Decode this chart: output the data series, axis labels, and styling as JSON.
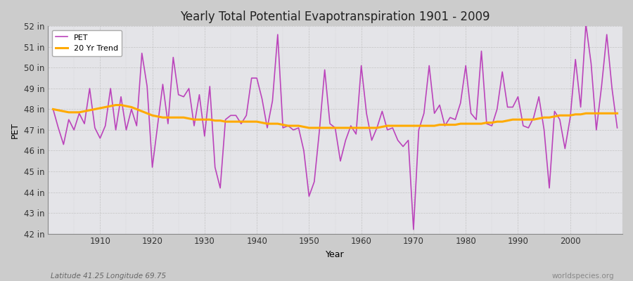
{
  "title": "Yearly Total Potential Evapotranspiration 1901 - 2009",
  "xlabel": "Year",
  "ylabel": "PET",
  "subtitle_left": "Latitude 41.25 Longitude 69.75",
  "subtitle_right": "worldspecies.org",
  "ylim": [
    42,
    52
  ],
  "yticks": [
    42,
    43,
    44,
    45,
    46,
    47,
    48,
    49,
    50,
    51,
    52
  ],
  "ytick_labels": [
    "42 in",
    "43 in",
    "44 in",
    "45 in",
    "46 in",
    "47 in",
    "48 in",
    "49 in",
    "50 in",
    "51 in",
    "52 in"
  ],
  "pet_color": "#bb44bb",
  "trend_color": "#ffaa00",
  "fig_bg_color": "#cccccc",
  "plot_bg_color": "#e4e4e8",
  "years": [
    1901,
    1902,
    1903,
    1904,
    1905,
    1906,
    1907,
    1908,
    1909,
    1910,
    1911,
    1912,
    1913,
    1914,
    1915,
    1916,
    1917,
    1918,
    1919,
    1920,
    1921,
    1922,
    1923,
    1924,
    1925,
    1926,
    1927,
    1928,
    1929,
    1930,
    1931,
    1932,
    1933,
    1934,
    1935,
    1936,
    1937,
    1938,
    1939,
    1940,
    1941,
    1942,
    1943,
    1944,
    1945,
    1946,
    1947,
    1948,
    1949,
    1950,
    1951,
    1952,
    1953,
    1954,
    1955,
    1956,
    1957,
    1958,
    1959,
    1960,
    1961,
    1962,
    1963,
    1964,
    1965,
    1966,
    1967,
    1968,
    1969,
    1970,
    1971,
    1972,
    1973,
    1974,
    1975,
    1976,
    1977,
    1978,
    1979,
    1980,
    1981,
    1982,
    1983,
    1984,
    1985,
    1986,
    1987,
    1988,
    1989,
    1990,
    1991,
    1992,
    1993,
    1994,
    1995,
    1996,
    1997,
    1998,
    1999,
    2000,
    2001,
    2002,
    2003,
    2004,
    2005,
    2006,
    2007,
    2008,
    2009
  ],
  "pet_values": [
    48.0,
    47.1,
    46.3,
    47.5,
    47.0,
    47.8,
    47.3,
    49.0,
    47.1,
    46.6,
    47.2,
    49.0,
    47.0,
    48.6,
    47.0,
    48.0,
    47.2,
    50.7,
    49.1,
    45.2,
    47.2,
    49.2,
    47.3,
    50.5,
    48.7,
    48.6,
    49.0,
    47.2,
    48.7,
    46.7,
    49.1,
    45.2,
    44.2,
    47.5,
    47.7,
    47.7,
    47.3,
    47.7,
    49.5,
    49.5,
    48.5,
    47.1,
    48.4,
    51.6,
    47.1,
    47.2,
    47.0,
    47.1,
    46.0,
    43.8,
    44.5,
    47.0,
    49.9,
    47.3,
    47.1,
    45.5,
    46.5,
    47.2,
    46.8,
    50.1,
    47.8,
    46.5,
    47.1,
    47.9,
    47.0,
    47.1,
    46.5,
    46.2,
    46.5,
    42.2,
    47.0,
    47.8,
    50.1,
    47.8,
    48.2,
    47.2,
    47.6,
    47.5,
    48.3,
    50.1,
    47.8,
    47.5,
    50.8,
    47.3,
    47.2,
    48.0,
    49.8,
    48.1,
    48.1,
    48.6,
    47.2,
    47.1,
    47.6,
    48.6,
    47.0,
    44.2,
    47.9,
    47.5,
    46.1,
    47.6,
    50.4,
    48.1,
    52.1,
    50.2,
    47.0,
    49.1,
    51.6,
    49.0,
    47.1
  ],
  "trend_values": [
    48.0,
    47.95,
    47.9,
    47.85,
    47.85,
    47.85,
    47.9,
    47.95,
    48.0,
    48.05,
    48.1,
    48.15,
    48.2,
    48.2,
    48.15,
    48.1,
    48.0,
    47.9,
    47.8,
    47.7,
    47.65,
    47.6,
    47.6,
    47.6,
    47.6,
    47.6,
    47.55,
    47.5,
    47.5,
    47.5,
    47.5,
    47.45,
    47.45,
    47.4,
    47.4,
    47.4,
    47.4,
    47.4,
    47.4,
    47.4,
    47.35,
    47.3,
    47.3,
    47.3,
    47.25,
    47.2,
    47.2,
    47.2,
    47.15,
    47.1,
    47.1,
    47.1,
    47.1,
    47.1,
    47.1,
    47.1,
    47.1,
    47.1,
    47.1,
    47.1,
    47.1,
    47.1,
    47.1,
    47.15,
    47.2,
    47.2,
    47.2,
    47.2,
    47.2,
    47.2,
    47.2,
    47.2,
    47.2,
    47.2,
    47.25,
    47.25,
    47.25,
    47.25,
    47.3,
    47.3,
    47.3,
    47.3,
    47.3,
    47.35,
    47.35,
    47.4,
    47.4,
    47.45,
    47.5,
    47.5,
    47.5,
    47.5,
    47.5,
    47.55,
    47.6,
    47.6,
    47.65,
    47.7,
    47.7,
    47.7,
    47.75,
    47.75,
    47.8,
    47.8,
    47.8,
    47.8,
    47.8,
    47.8,
    47.8
  ]
}
